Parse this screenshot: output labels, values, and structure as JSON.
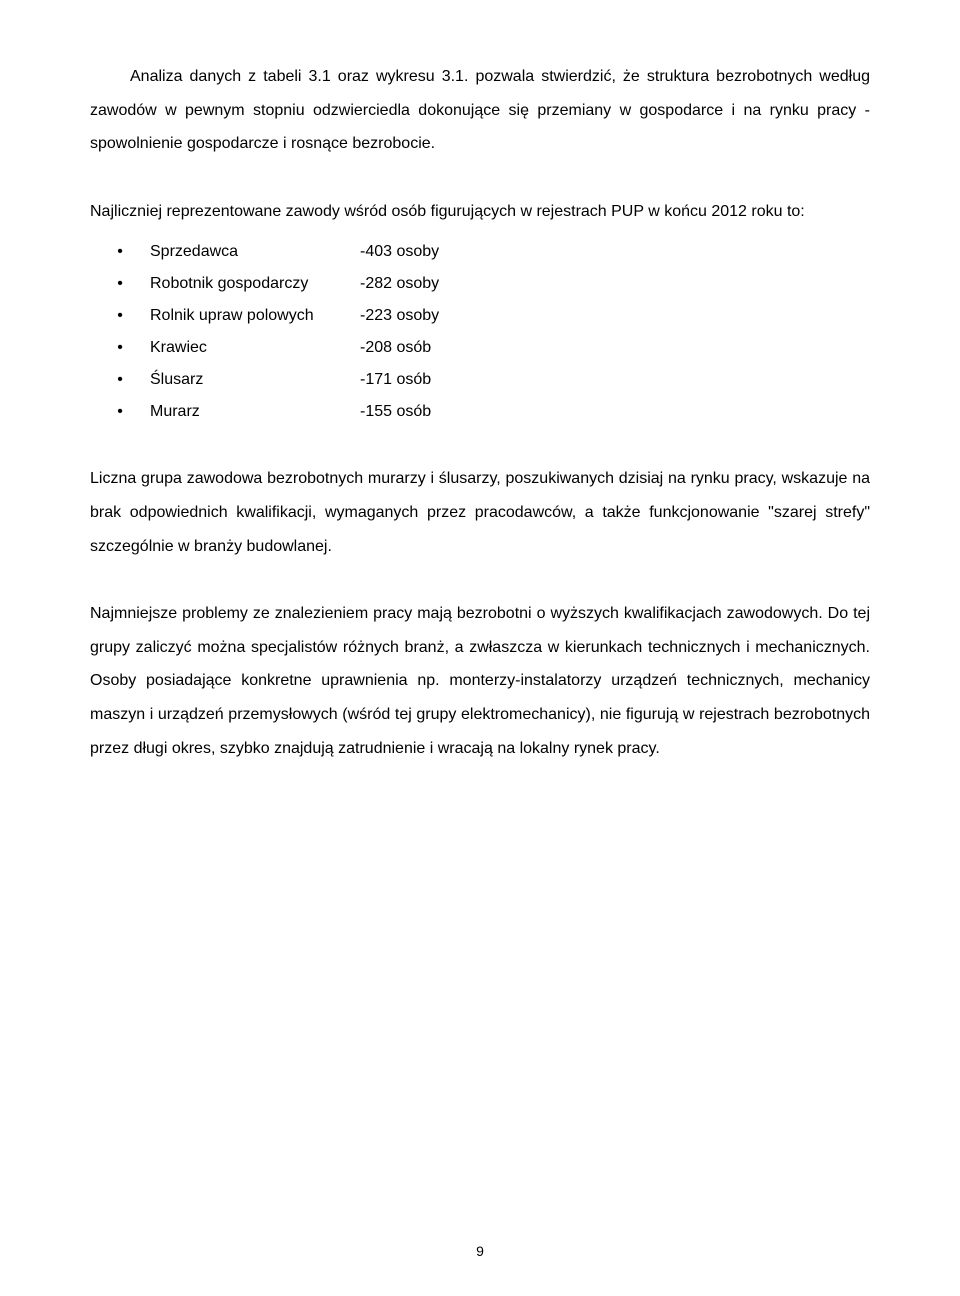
{
  "para1": "Analiza danych z tabeli 3.1 oraz wykresu 3.1. pozwala stwierdzić, że struktura bezrobotnych według zawodów w pewnym stopniu odzwierciedla dokonujące się przemiany w gospodarce i na rynku pracy - spowolnienie gospodarcze i rosnące bezrobocie.",
  "intro": "Najliczniej reprezentowane zawody wśród osób figurujących w rejestrach PUP w końcu 2012 roku to:",
  "bullets": [
    {
      "name": "Sprzedawca",
      "value": "-403 osoby"
    },
    {
      "name": "Robotnik gospodarczy",
      "value": "-282 osoby"
    },
    {
      "name": "Rolnik upraw polowych",
      "value": "-223 osoby"
    },
    {
      "name": "Krawiec",
      "value": "-208 osób"
    },
    {
      "name": "Ślusarz",
      "value": "-171 osób"
    },
    {
      "name": "Murarz",
      "value": "-155 osób"
    }
  ],
  "para2": "Liczna grupa zawodowa bezrobotnych murarzy i ślusarzy, poszukiwanych dzisiaj na rynku pracy, wskazuje na brak odpowiednich kwalifikacji, wymaganych przez pracodawców, a także funkcjonowanie \"szarej strefy\" szczególnie w branży budowlanej.",
  "para3": "Najmniejsze problemy ze znalezieniem pracy mają bezrobotni o wyższych kwalifikacjach zawodowych. Do tej grupy zaliczyć można specjalistów różnych branż, a zwłaszcza w kierunkach technicznych i mechanicznych. Osoby posiadające konkretne uprawnienia np. monterzy-instalatorzy urządzeń technicznych, mechanicy maszyn i urządzeń przemysłowych (wśród tej grupy elektromechanicy), nie figurują w rejestrach bezrobotnych przez długi okres, szybko znajdują zatrudnienie i wracają na lokalny rynek pracy.",
  "pageNumber": "9",
  "bulletChar": "•"
}
